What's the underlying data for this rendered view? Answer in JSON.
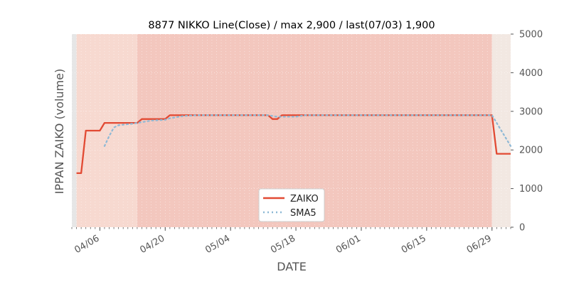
{
  "chart_data": {
    "type": "line",
    "title": "8877 NIKKO Line(Close) / max 2,900 / last(07/03) 1,900",
    "xlabel": "DATE",
    "ylabel": "IPPAN ZAIKO (volume)",
    "ylim": [
      0,
      5000
    ],
    "y_ticks": [
      "0",
      "1000",
      "2000",
      "3000",
      "4000",
      "5000"
    ],
    "y_axis_side": "right",
    "x_range": [
      "2020-03-31",
      "2020-07-03"
    ],
    "x_ticks": [
      {
        "date": "2020-04-06",
        "label": "04/06"
      },
      {
        "date": "2020-04-20",
        "label": "04/20"
      },
      {
        "date": "2020-05-04",
        "label": "05/04"
      },
      {
        "date": "2020-05-18",
        "label": "05/18"
      },
      {
        "date": "2020-06-01",
        "label": "06/01"
      },
      {
        "date": "2020-06-15",
        "label": "06/15"
      },
      {
        "date": "2020-06-29",
        "label": "06/29"
      }
    ],
    "grid": true,
    "legend_position": "bottom-center",
    "shaded_regions": [
      {
        "from": "2020-03-31",
        "to": "2020-04-01",
        "color": "#e6e6e6"
      },
      {
        "from": "2020-04-01",
        "to": "2020-04-14",
        "color": "#f7d9d0"
      },
      {
        "from": "2020-04-14",
        "to": "2020-06-29",
        "color": "#f3c7be"
      },
      {
        "from": "2020-06-29",
        "to": "2020-07-03",
        "color": "#f2e8e2"
      }
    ],
    "series": [
      {
        "name": "ZAIKO",
        "color": "#e24a33",
        "style": "solid",
        "points": [
          [
            "2020-04-01",
            1400
          ],
          [
            "2020-04-02",
            1400
          ],
          [
            "2020-04-03",
            2500
          ],
          [
            "2020-04-06",
            2500
          ],
          [
            "2020-04-07",
            2700
          ],
          [
            "2020-04-08",
            2700
          ],
          [
            "2020-04-09",
            2700
          ],
          [
            "2020-04-10",
            2700
          ],
          [
            "2020-04-13",
            2700
          ],
          [
            "2020-04-14",
            2700
          ],
          [
            "2020-04-15",
            2800
          ],
          [
            "2020-04-16",
            2800
          ],
          [
            "2020-04-17",
            2800
          ],
          [
            "2020-04-20",
            2800
          ],
          [
            "2020-04-21",
            2900
          ],
          [
            "2020-04-22",
            2900
          ],
          [
            "2020-04-23",
            2900
          ],
          [
            "2020-04-24",
            2900
          ],
          [
            "2020-04-27",
            2900
          ],
          [
            "2020-04-28",
            2900
          ],
          [
            "2020-04-30",
            2900
          ],
          [
            "2020-05-01",
            2900
          ],
          [
            "2020-05-07",
            2900
          ],
          [
            "2020-05-08",
            2900
          ],
          [
            "2020-05-11",
            2900
          ],
          [
            "2020-05-12",
            2900
          ],
          [
            "2020-05-13",
            2800
          ],
          [
            "2020-05-14",
            2800
          ],
          [
            "2020-05-15",
            2900
          ],
          [
            "2020-05-18",
            2900
          ],
          [
            "2020-05-19",
            2900
          ],
          [
            "2020-05-20",
            2900
          ],
          [
            "2020-05-21",
            2900
          ],
          [
            "2020-05-22",
            2900
          ],
          [
            "2020-05-25",
            2900
          ],
          [
            "2020-05-26",
            2900
          ],
          [
            "2020-05-27",
            2900
          ],
          [
            "2020-05-28",
            2900
          ],
          [
            "2020-05-29",
            2900
          ],
          [
            "2020-06-01",
            2900
          ],
          [
            "2020-06-05",
            2900
          ],
          [
            "2020-06-10",
            2900
          ],
          [
            "2020-06-15",
            2900
          ],
          [
            "2020-06-19",
            2900
          ],
          [
            "2020-06-24",
            2900
          ],
          [
            "2020-06-29",
            2900
          ],
          [
            "2020-06-30",
            1900
          ],
          [
            "2020-07-01",
            1900
          ],
          [
            "2020-07-02",
            1900
          ],
          [
            "2020-07-03",
            1900
          ]
        ]
      },
      {
        "name": "SMA5",
        "color": "#8eb9d6",
        "style": "dotted",
        "points": [
          [
            "2020-04-07",
            2100
          ],
          [
            "2020-04-08",
            2360
          ],
          [
            "2020-04-09",
            2580
          ],
          [
            "2020-04-10",
            2640
          ],
          [
            "2020-04-13",
            2680
          ],
          [
            "2020-04-14",
            2700
          ],
          [
            "2020-04-15",
            2720
          ],
          [
            "2020-04-16",
            2740
          ],
          [
            "2020-04-17",
            2760
          ],
          [
            "2020-04-20",
            2780
          ],
          [
            "2020-04-21",
            2820
          ],
          [
            "2020-04-22",
            2840
          ],
          [
            "2020-04-23",
            2860
          ],
          [
            "2020-04-24",
            2880
          ],
          [
            "2020-04-27",
            2900
          ],
          [
            "2020-05-12",
            2900
          ],
          [
            "2020-05-13",
            2880
          ],
          [
            "2020-05-14",
            2860
          ],
          [
            "2020-05-15",
            2860
          ],
          [
            "2020-05-18",
            2860
          ],
          [
            "2020-05-19",
            2880
          ],
          [
            "2020-05-20",
            2900
          ],
          [
            "2020-06-29",
            2900
          ],
          [
            "2020-06-30",
            2700
          ],
          [
            "2020-07-01",
            2500
          ],
          [
            "2020-07-02",
            2300
          ],
          [
            "2020-07-03",
            2100
          ]
        ]
      }
    ]
  }
}
